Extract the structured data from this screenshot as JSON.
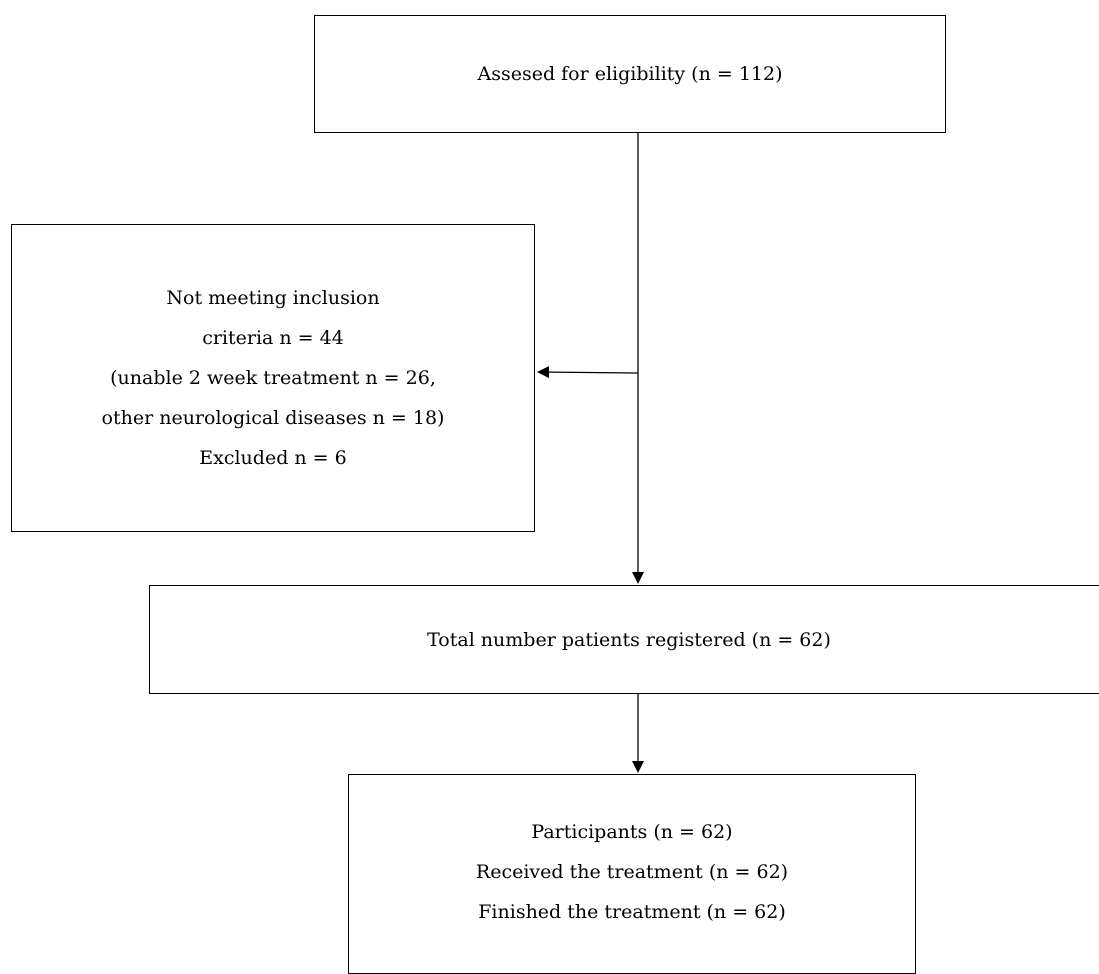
{
  "flowchart": {
    "eligibility": {
      "line1": "Assesed for eligibility (n = 112)"
    },
    "excluded": {
      "line1": "Not meeting inclusion",
      "line2": "criteria n = 44",
      "line3": "(unable 2 week treatment n = 26,",
      "line4": "other neurological diseases n = 18)",
      "line5": "Excluded n = 6"
    },
    "registered": {
      "line1": "Total number patients registered (n = 62)"
    },
    "participants": {
      "line1": "Participants (n = 62)",
      "line2": "Received the treatment (n = 62)",
      "line3": "Finished the treatment (n = 62)"
    }
  }
}
